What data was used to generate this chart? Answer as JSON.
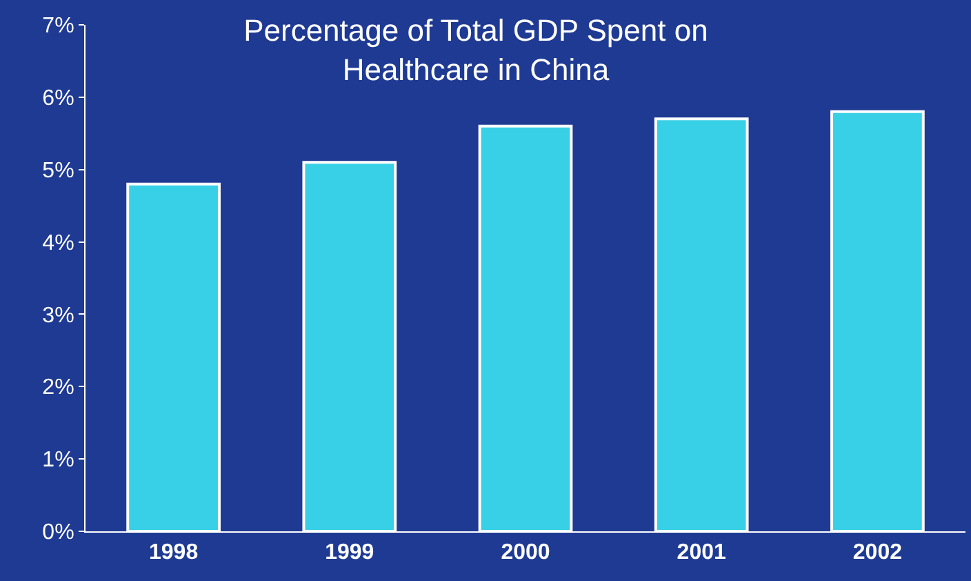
{
  "chart_data": {
    "type": "bar",
    "title": "Percentage of Total GDP Spent on\nHealthcare in China",
    "categories": [
      "1998",
      "1999",
      "2000",
      "2001",
      "2002"
    ],
    "values": [
      4.8,
      5.1,
      5.6,
      5.7,
      5.8
    ],
    "color": "#38d0e6",
    "ylim": [
      0,
      7
    ],
    "yticks": [
      {
        "value": 0,
        "label": "0%"
      },
      {
        "value": 1,
        "label": "1%"
      },
      {
        "value": 2,
        "label": "2%"
      },
      {
        "value": 3,
        "label": "3%"
      },
      {
        "value": 4,
        "label": "4%"
      },
      {
        "value": 5,
        "label": "5%"
      },
      {
        "value": 6,
        "label": "6%"
      },
      {
        "value": 7,
        "label": "7%"
      }
    ],
    "grid": false,
    "legend": false
  }
}
